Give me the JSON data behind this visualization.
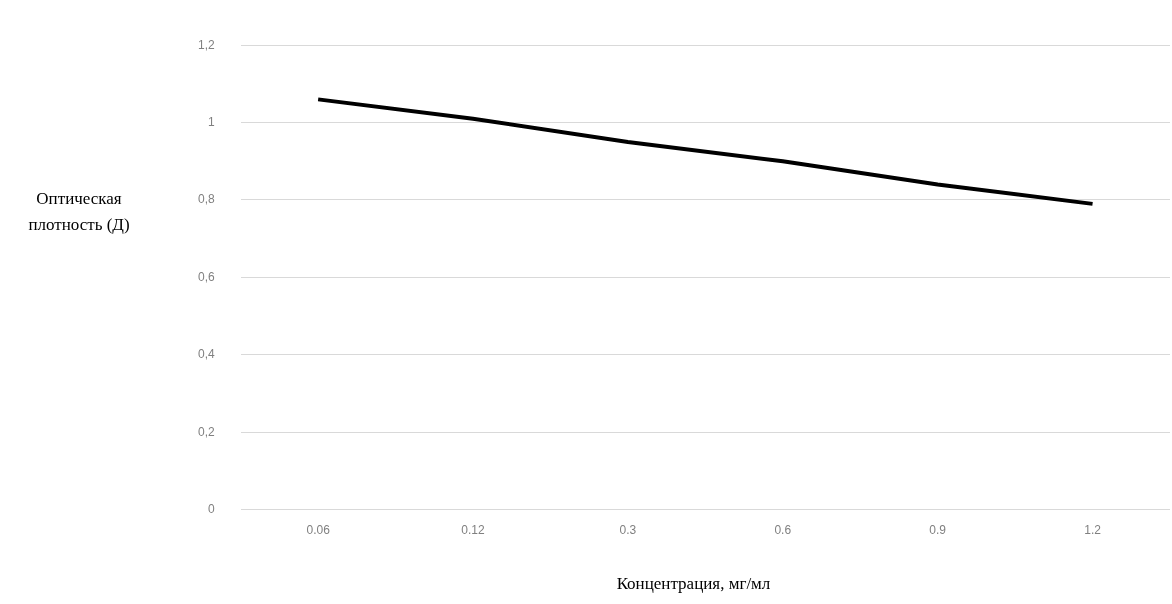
{
  "chart_data": {
    "type": "line",
    "xlabel": "Концентрация, мг/мл",
    "ylabel": "Оптическая плотность (Д)",
    "categories": [
      "0.06",
      "0.12",
      "0.3",
      "0.6",
      "0.9",
      "1.2"
    ],
    "series": [
      {
        "color": "#000000",
        "values": [
          1.06,
          1.01,
          0.95,
          0.9,
          0.84,
          0.79
        ]
      }
    ],
    "ylim": [
      0,
      1.2
    ],
    "yticks": [
      {
        "value": 0,
        "label": "0"
      },
      {
        "value": 0.2,
        "label": "0,2"
      },
      {
        "value": 0.4,
        "label": "0,4"
      },
      {
        "value": 0.6,
        "label": "0,6"
      },
      {
        "value": 0.8,
        "label": "0,8"
      },
      {
        "value": 1,
        "label": "1"
      },
      {
        "value": 1.2,
        "label": "1,2"
      }
    ],
    "grid": "y",
    "legend": false,
    "marker": "none",
    "line_style": "solid"
  }
}
